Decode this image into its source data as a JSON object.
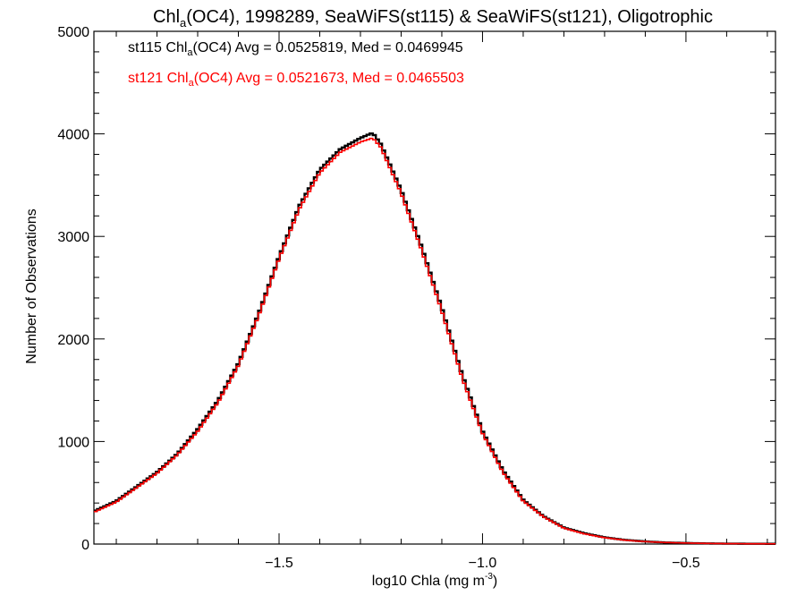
{
  "chart_data": {
    "type": "line",
    "title": {
      "base": "Chl",
      "sub": "a",
      "rest": "(OC4), 1998289, SeaWiFS(st115) & SeaWiFS(st121), Oligotrophic"
    },
    "xlabel": {
      "base": "log10 Chla (mg m",
      "sup": "-3",
      "rest": ")"
    },
    "ylabel": "Number of Observations",
    "xlim": [
      -1.955,
      -0.28
    ],
    "ylim": [
      0,
      5000
    ],
    "xticks": [
      -1.5,
      -1.0,
      -0.5
    ],
    "xtick_labels": [
      "−1.5",
      "−1.0",
      "−0.5"
    ],
    "yticks": [
      0,
      1000,
      2000,
      3000,
      4000,
      5000
    ],
    "ytick_labels": [
      "0",
      "1000",
      "2000",
      "3000",
      "4000",
      "5000"
    ],
    "grid": false,
    "annotations": [
      {
        "pre": "st115 Chl",
        "sub": "a",
        "post": "(OC4) Avg = 0.0525819, Med = 0.0469945",
        "color": "#000000"
      },
      {
        "pre": "st121 Chl",
        "sub": "a",
        "post": "(OC4) Avg = 0.0521673, Med = 0.0465503",
        "color": "#ff0000"
      }
    ],
    "series": [
      {
        "name": "st115",
        "color": "#000000",
        "x": [
          -1.955,
          -1.9,
          -1.85,
          -1.8,
          -1.75,
          -1.7,
          -1.65,
          -1.6,
          -1.55,
          -1.5,
          -1.45,
          -1.4,
          -1.35,
          -1.3,
          -1.27,
          -1.25,
          -1.2,
          -1.15,
          -1.1,
          -1.05,
          -1.0,
          -0.95,
          -0.9,
          -0.85,
          -0.8,
          -0.75,
          -0.7,
          -0.65,
          -0.6,
          -0.55,
          -0.5,
          -0.45,
          -0.4,
          -0.35,
          -0.28
        ],
        "y": [
          320,
          420,
          560,
          700,
          880,
          1120,
          1400,
          1760,
          2250,
          2800,
          3300,
          3650,
          3850,
          3960,
          4010,
          3900,
          3450,
          2900,
          2300,
          1650,
          1100,
          720,
          430,
          270,
          160,
          105,
          65,
          40,
          25,
          15,
          10,
          6,
          4,
          3,
          2
        ]
      },
      {
        "name": "st121",
        "color": "#ff0000",
        "x": [
          -1.955,
          -1.9,
          -1.85,
          -1.8,
          -1.75,
          -1.7,
          -1.65,
          -1.6,
          -1.55,
          -1.5,
          -1.45,
          -1.4,
          -1.35,
          -1.3,
          -1.27,
          -1.25,
          -1.2,
          -1.15,
          -1.1,
          -1.05,
          -1.0,
          -0.95,
          -0.9,
          -0.85,
          -0.8,
          -0.75,
          -0.7,
          -0.65,
          -0.6,
          -0.55,
          -0.5,
          -0.45,
          -0.4,
          -0.35,
          -0.28
        ],
        "y": [
          310,
          410,
          550,
          690,
          870,
          1100,
          1380,
          1740,
          2230,
          2780,
          3270,
          3620,
          3820,
          3920,
          3960,
          3870,
          3420,
          2870,
          2270,
          1620,
          1080,
          700,
          420,
          265,
          155,
          100,
          62,
          38,
          24,
          15,
          10,
          6,
          4,
          3,
          2
        ]
      }
    ]
  }
}
